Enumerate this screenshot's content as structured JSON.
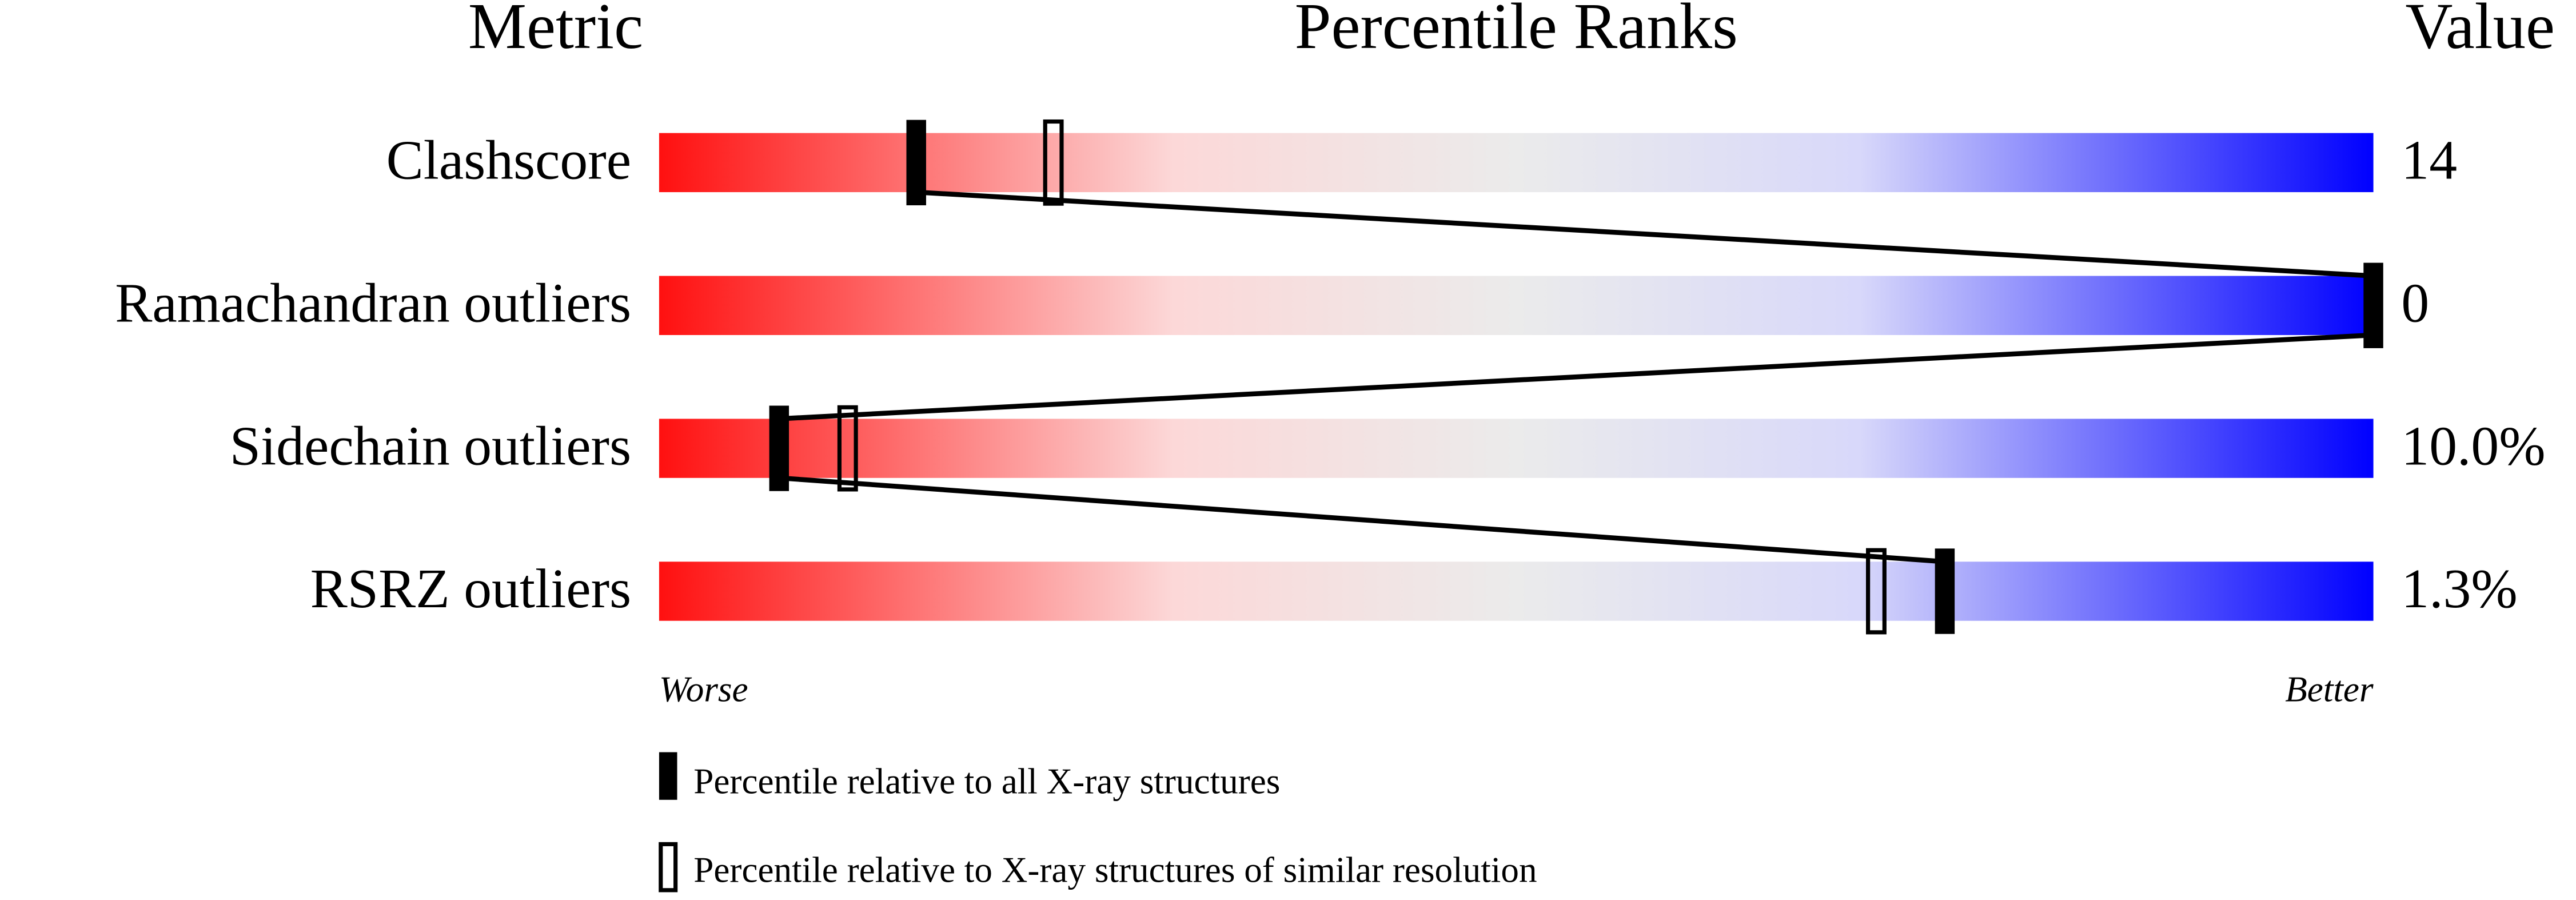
{
  "chart_data": {
    "type": "percentile-slider",
    "headers": [
      "Metric",
      "Percentile Ranks",
      "Value"
    ],
    "categories": [
      "Clashscore",
      "Ramachandran outliers",
      "Sidechain outliers",
      "RSRZ outliers"
    ],
    "metric_values": [
      "14",
      "0",
      "10.0%",
      "1.3%"
    ],
    "xlim": [
      0,
      100
    ],
    "axis_labels": [
      "Worse",
      "Better"
    ],
    "series": [
      {
        "name": "Percentile relative to all X-ray structures",
        "color": "#000000",
        "values": [
          15,
          100,
          7,
          75
        ]
      },
      {
        "name": "Percentile relative to X-ray structures of similar resolution",
        "color": "#000000",
        "values": [
          23,
          null,
          11,
          71
        ]
      }
    ]
  }
}
